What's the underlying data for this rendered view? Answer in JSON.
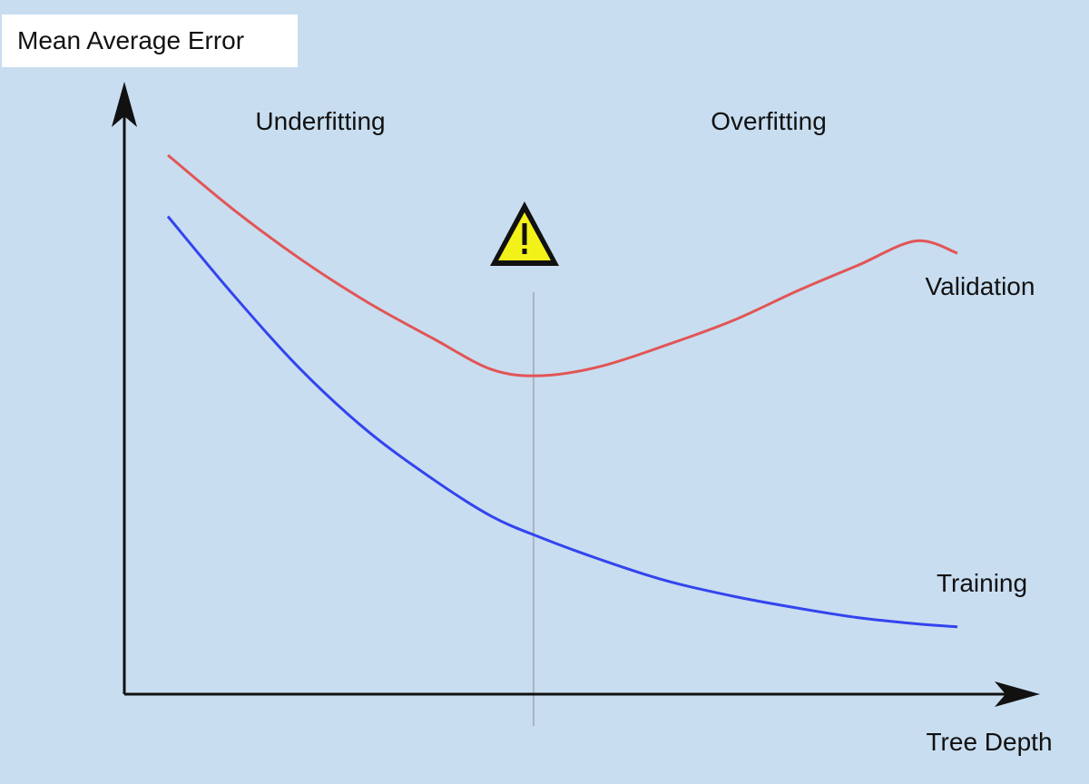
{
  "chart_data": {
    "type": "line",
    "ylabel": "Mean Average Error",
    "xlabel": "Tree Depth",
    "xlim": [
      0,
      10
    ],
    "ylim": [
      0,
      10
    ],
    "grid": false,
    "legend": "none",
    "series": [
      {
        "name": "Validation",
        "color": "#e25555",
        "x": [
          0.0,
          0.8,
          1.6,
          2.4,
          3.2,
          3.9,
          4.5,
          5.2,
          6.0,
          6.8,
          7.6,
          8.3,
          9.0,
          9.5
        ],
        "y": [
          8.8,
          7.9,
          7.1,
          6.4,
          5.8,
          5.3,
          5.2,
          5.35,
          5.7,
          6.1,
          6.6,
          7.0,
          7.4,
          7.2
        ]
      },
      {
        "name": "Training",
        "color": "#3344ee",
        "x": [
          0.0,
          0.8,
          1.6,
          2.4,
          3.2,
          3.9,
          4.5,
          5.2,
          6.0,
          6.8,
          7.6,
          8.3,
          9.0,
          9.5
        ],
        "y": [
          7.8,
          6.5,
          5.3,
          4.3,
          3.5,
          2.9,
          2.55,
          2.2,
          1.85,
          1.6,
          1.4,
          1.25,
          1.15,
          1.1
        ]
      }
    ],
    "annotations": [
      {
        "text": "Underfitting"
      },
      {
        "text": "Overfitting"
      },
      {
        "marker": "warning",
        "x": 4.4
      }
    ],
    "colors": {
      "background": "#c8ddf0",
      "axis": "#111111",
      "divider": "#aab5bd",
      "warning_fill": "#f2f21a"
    }
  }
}
